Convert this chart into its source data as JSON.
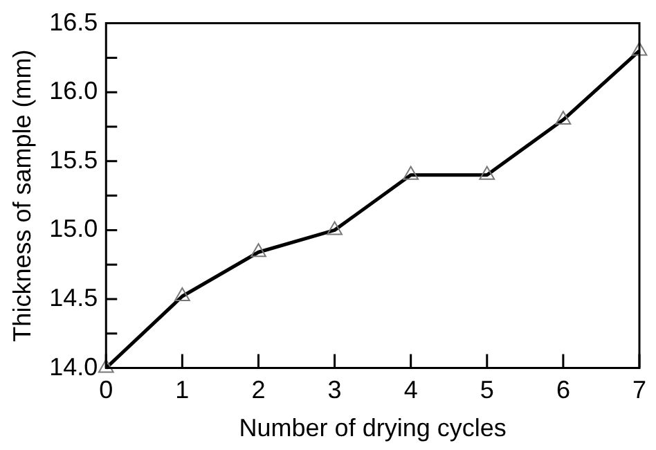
{
  "chart_data": {
    "type": "line",
    "xlabel": "Number of drying cycles",
    "ylabel": "Thickness of sample (mm)",
    "x": [
      0,
      1,
      2,
      3,
      4,
      5,
      6,
      7
    ],
    "series": [
      {
        "color": "#000000",
        "values": [
          14.0,
          14.52,
          14.84,
          15.0,
          15.4,
          15.4,
          15.8,
          16.3
        ]
      }
    ],
    "xlim": [
      0,
      7
    ],
    "xticks": [
      0,
      1,
      2,
      3,
      4,
      5,
      6,
      7
    ],
    "ylim": [
      14,
      16.5
    ],
    "yticks": [
      {
        "value": 14,
        "label": "14.0"
      },
      {
        "value": 14.25,
        "label": null
      },
      {
        "value": 14.5,
        "label": "14.5"
      },
      {
        "value": 14.75,
        "label": null
      },
      {
        "value": 15,
        "label": "15.0"
      },
      {
        "value": 15.25,
        "label": null
      },
      {
        "value": 15.5,
        "label": "15.5"
      },
      {
        "value": 15.75,
        "label": null
      },
      {
        "value": 16,
        "label": "16.0"
      },
      {
        "value": 16.25,
        "label": null
      },
      {
        "value": 16.5,
        "label": "16.5"
      }
    ],
    "grid": false,
    "legend": false,
    "marker": "triangle",
    "line_style": "solid"
  }
}
